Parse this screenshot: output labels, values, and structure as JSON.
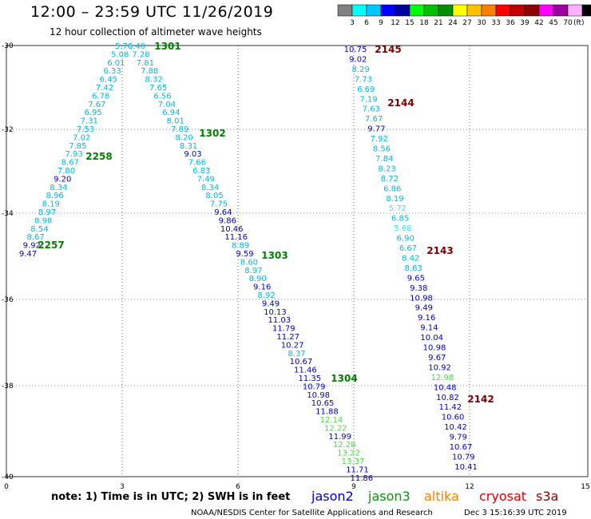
{
  "header": {
    "title": "12:00 – 23:59 UTC 11/26/2019",
    "subtitle": "12 hour collection of altimeter wave heights"
  },
  "legend": {
    "unit": "(ft)",
    "colors": [
      "#808080",
      "#00ffff",
      "#00c8ff",
      "#0000ff",
      "#0000a0",
      "#00ff00",
      "#00c000",
      "#009000",
      "#ffff00",
      "#ffc000",
      "#ff8000",
      "#ff0000",
      "#c00000",
      "#900000",
      "#ff00ff",
      "#a000a0",
      "#ffb0ff",
      "#000000"
    ],
    "labels": [
      "3",
      "6",
      "9",
      "12",
      "15",
      "18",
      "21",
      "24",
      "27",
      "30",
      "33",
      "36",
      "39",
      "42",
      "45",
      "70"
    ]
  },
  "axes": {
    "x_ticks": [
      "0",
      "3",
      "6",
      "9",
      "12",
      "15"
    ],
    "y_ticks": [
      "-30",
      "-32",
      "-34",
      "-36",
      "-38",
      "-40"
    ]
  },
  "passes": [
    {
      "label": "1301",
      "color": "#008000"
    },
    {
      "label": "1302",
      "color": "#008000"
    },
    {
      "label": "1303",
      "color": "#008000"
    },
    {
      "label": "1304",
      "color": "#008000"
    },
    {
      "label": "2258",
      "color": "#008000"
    },
    {
      "label": "2257",
      "color": "#008000"
    },
    {
      "label": "2145",
      "color": "#800000"
    },
    {
      "label": "2144",
      "color": "#800000"
    },
    {
      "label": "2143",
      "color": "#800000"
    },
    {
      "label": "2142",
      "color": "#800000"
    }
  ],
  "track_left": [
    {
      "v": "5.76",
      "c": "#00b8e8"
    },
    {
      "v": "5.08",
      "c": "#00b8e8"
    },
    {
      "v": "6.01",
      "c": "#00b8e8"
    },
    {
      "v": "6.33",
      "c": "#00b8e8"
    },
    {
      "v": "6.45",
      "c": "#00b8e8"
    },
    {
      "v": "7.42",
      "c": "#00b8e8"
    },
    {
      "v": "6.78",
      "c": "#00b8e8"
    },
    {
      "v": "7.67",
      "c": "#00b8e8"
    },
    {
      "v": "6.95",
      "c": "#00b8e8"
    },
    {
      "v": "7.31",
      "c": "#00b8e8"
    },
    {
      "v": "7.53",
      "c": "#00b8e8"
    },
    {
      "v": "7.02",
      "c": "#00b8e8"
    },
    {
      "v": "7.85",
      "c": "#00b8e8"
    },
    {
      "v": "7.93",
      "c": "#00b8e8"
    },
    {
      "v": "8.67",
      "c": "#00b8e8"
    },
    {
      "v": "7.80",
      "c": "#00b8e8"
    },
    {
      "v": "9.20",
      "c": "#0000c8"
    },
    {
      "v": "8.34",
      "c": "#00b8e8"
    },
    {
      "v": "8.96",
      "c": "#00b8e8"
    },
    {
      "v": "8.19",
      "c": "#00b8e8"
    },
    {
      "v": "8.97",
      "c": "#00b8e8"
    },
    {
      "v": "8.98",
      "c": "#00b8e8"
    },
    {
      "v": "8.54",
      "c": "#00b8e8"
    },
    {
      "v": "8.67",
      "c": "#00b8e8"
    },
    {
      "v": "9.92",
      "c": "#0000c8"
    },
    {
      "v": "9.47",
      "c": "#0000c8"
    }
  ],
  "track_mid": [
    {
      "v": "6.40",
      "c": "#00b8e8"
    },
    {
      "v": "7.28",
      "c": "#00b8e8"
    },
    {
      "v": "7.81",
      "c": "#00b8e8"
    },
    {
      "v": "7.88",
      "c": "#00b8e8"
    },
    {
      "v": "8.32",
      "c": "#00b8e8"
    },
    {
      "v": "7.65",
      "c": "#00b8e8"
    },
    {
      "v": "6.56",
      "c": "#00b8e8"
    },
    {
      "v": "7.04",
      "c": "#00b8e8"
    },
    {
      "v": "6.94",
      "c": "#00b8e8"
    },
    {
      "v": "8.01",
      "c": "#00b8e8"
    },
    {
      "v": "7.89",
      "c": "#00b8e8"
    },
    {
      "v": "8.20",
      "c": "#00b8e8"
    },
    {
      "v": "8.31",
      "c": "#00b8e8"
    },
    {
      "v": "9.03",
      "c": "#0000c8"
    },
    {
      "v": "7.66",
      "c": "#00b8e8"
    },
    {
      "v": "6.83",
      "c": "#00b8e8"
    },
    {
      "v": "7.49",
      "c": "#00b8e8"
    },
    {
      "v": "8.34",
      "c": "#00b8e8"
    },
    {
      "v": "8.05",
      "c": "#00b8e8"
    },
    {
      "v": "7.75",
      "c": "#00b8e8"
    },
    {
      "v": "9.64",
      "c": "#0000c8"
    },
    {
      "v": "9.86",
      "c": "#0000c8"
    },
    {
      "v": "10.46",
      "c": "#0000c8"
    },
    {
      "v": "11.16",
      "c": "#0000c8"
    },
    {
      "v": "8.89",
      "c": "#00b8e8"
    },
    {
      "v": "9.59",
      "c": "#0000c8"
    },
    {
      "v": "8.60",
      "c": "#00b8e8"
    },
    {
      "v": "8.97",
      "c": "#00b8e8"
    },
    {
      "v": "8.90",
      "c": "#00b8e8"
    },
    {
      "v": "9.16",
      "c": "#0000c8"
    },
    {
      "v": "8.92",
      "c": "#00b8e8"
    },
    {
      "v": "9.49",
      "c": "#0000c8"
    },
    {
      "v": "10.13",
      "c": "#0000c8"
    },
    {
      "v": "11.03",
      "c": "#0000c8"
    },
    {
      "v": "11.79",
      "c": "#0000c8"
    },
    {
      "v": "11.27",
      "c": "#0000c8"
    },
    {
      "v": "10.27",
      "c": "#0000c8"
    },
    {
      "v": "8.37",
      "c": "#00b8e8"
    },
    {
      "v": "10.67",
      "c": "#0000c8"
    },
    {
      "v": "11.46",
      "c": "#0000c8"
    },
    {
      "v": "11.35",
      "c": "#0000c8"
    },
    {
      "v": "10.79",
      "c": "#0000c8"
    },
    {
      "v": "10.98",
      "c": "#0000c8"
    },
    {
      "v": "10.65",
      "c": "#0000c8"
    },
    {
      "v": "11.88",
      "c": "#0000c8"
    },
    {
      "v": "12.14",
      "c": "#44dd44"
    },
    {
      "v": "12.22",
      "c": "#44dd44"
    },
    {
      "v": "11.99",
      "c": "#0000c8"
    },
    {
      "v": "12.28",
      "c": "#44dd44"
    },
    {
      "v": "13.22",
      "c": "#44dd44"
    },
    {
      "v": "13.37",
      "c": "#44dd44"
    },
    {
      "v": "11.71",
      "c": "#0000c8"
    },
    {
      "v": "11.86",
      "c": "#0000c8"
    }
  ],
  "track_right": [
    {
      "v": "10.75",
      "c": "#0000c8"
    },
    {
      "v": "9.02",
      "c": "#0000c8"
    },
    {
      "v": "8.29",
      "c": "#00b8e8"
    },
    {
      "v": "7.73",
      "c": "#00b8e8"
    },
    {
      "v": "6.69",
      "c": "#00b8e8"
    },
    {
      "v": "7.19",
      "c": "#00b8e8"
    },
    {
      "v": "7.63",
      "c": "#00b8e8"
    },
    {
      "v": "7.67",
      "c": "#00b8e8"
    },
    {
      "v": "9.77",
      "c": "#0000c8"
    },
    {
      "v": "7.92",
      "c": "#00b8e8"
    },
    {
      "v": "8.56",
      "c": "#00b8e8"
    },
    {
      "v": "7.84",
      "c": "#00b8e8"
    },
    {
      "v": "8.23",
      "c": "#00b8e8"
    },
    {
      "v": "8.72",
      "c": "#00b8e8"
    },
    {
      "v": "6.86",
      "c": "#00b8e8"
    },
    {
      "v": "8.19",
      "c": "#00b8e8"
    },
    {
      "v": "5.72",
      "c": "#40e0f0"
    },
    {
      "v": "6.85",
      "c": "#00b8e8"
    },
    {
      "v": "5.68",
      "c": "#40e0f0"
    },
    {
      "v": "6.90",
      "c": "#00b8e8"
    },
    {
      "v": "6.67",
      "c": "#00b8e8"
    },
    {
      "v": "8.42",
      "c": "#00b8e8"
    },
    {
      "v": "8.63",
      "c": "#00b8e8"
    },
    {
      "v": "9.65",
      "c": "#0000c8"
    },
    {
      "v": "9.38",
      "c": "#0000c8"
    },
    {
      "v": "10.98",
      "c": "#0000c8"
    },
    {
      "v": "9.49",
      "c": "#0000c8"
    },
    {
      "v": "9.16",
      "c": "#0000c8"
    },
    {
      "v": "9.14",
      "c": "#0000c8"
    },
    {
      "v": "10.04",
      "c": "#0000c8"
    },
    {
      "v": "10.98",
      "c": "#0000c8"
    },
    {
      "v": "9.67",
      "c": "#0000c8"
    },
    {
      "v": "10.92",
      "c": "#0000c8"
    },
    {
      "v": "12.98",
      "c": "#44dd44"
    },
    {
      "v": "10.48",
      "c": "#0000c8"
    },
    {
      "v": "10.82",
      "c": "#0000c8"
    },
    {
      "v": "11.42",
      "c": "#0000c8"
    },
    {
      "v": "10.60",
      "c": "#0000c8"
    },
    {
      "v": "10.42",
      "c": "#0000c8"
    },
    {
      "v": "9.79",
      "c": "#0000c8"
    },
    {
      "v": "10.67",
      "c": "#0000c8"
    },
    {
      "v": "10.79",
      "c": "#0000c8"
    },
    {
      "v": "10.41",
      "c": "#0000c8"
    }
  ],
  "footer": {
    "note": "note:  1) Time is in UTC;  2) SWH is in feet",
    "satellites": [
      {
        "name": "jason2",
        "color": "#0000cc"
      },
      {
        "name": "jason3",
        "color": "#00a000"
      },
      {
        "name": "altika",
        "color": "#ff8000"
      },
      {
        "name": "cryosat",
        "color": "#e00000"
      },
      {
        "name": "s3a",
        "color": "#900000"
      }
    ],
    "credit": "NOAA/NESDIS Center for Satellite Applications and Research",
    "timestamp": "Dec  3 15:16:39 UTC 2019"
  }
}
